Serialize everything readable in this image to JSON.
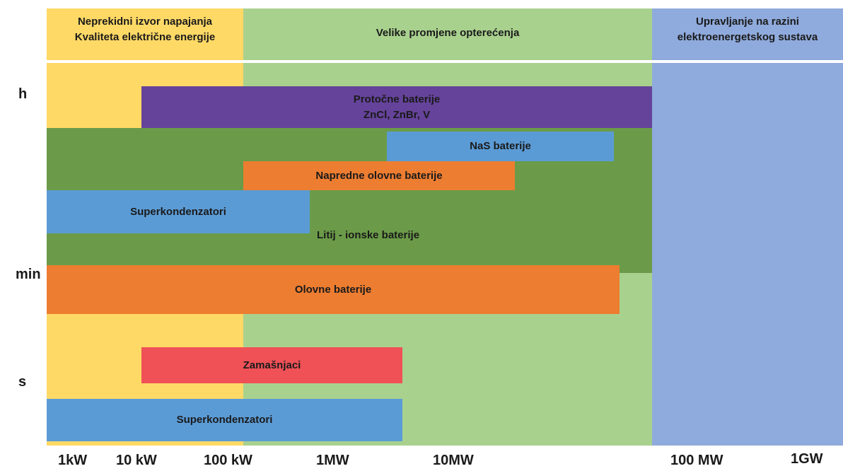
{
  "zones": [
    {
      "lines": [
        "Neprekidni izvor napajanja",
        "Kvaliteta električne energije"
      ]
    },
    {
      "lines": [
        "Velike promjene opterećenja"
      ]
    },
    {
      "lines": [
        "Upravljanje na razini",
        "elektroenergetskog sustava"
      ]
    }
  ],
  "bars": [
    {
      "lines": [
        "Protočne baterije",
        "ZnCl, ZnBr, V"
      ]
    },
    {
      "lines": [
        "Litij - ionske baterije"
      ]
    },
    {
      "lines": [
        "NaS baterije"
      ]
    },
    {
      "lines": [
        "Napredne olovne baterije"
      ]
    },
    {
      "lines": [
        "Superkondenzatori"
      ]
    },
    {
      "lines": [
        "Olovne baterije"
      ]
    },
    {
      "lines": [
        "Zamašnjaci"
      ]
    },
    {
      "lines": [
        "Superkondenzatori"
      ]
    }
  ],
  "y_labels": [
    "h",
    "min",
    "s"
  ],
  "x_labels": [
    "1kW",
    "10 kW",
    "100 kW",
    "1MW",
    "10MW",
    "100 MW",
    "1GW"
  ]
}
